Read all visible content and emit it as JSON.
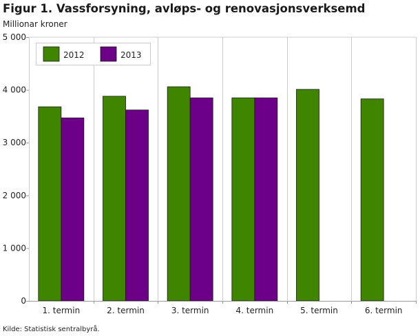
{
  "title": "Figur 1. Vassforsyning, avløps- og renovasjonsverksemd",
  "subtitle": "Millionar kroner",
  "source": "Kilde: Statistisk sentralbyrå.",
  "colors": {
    "2012": "#3f8500",
    "2013": "#6c0086",
    "grid": "#cccccc",
    "axis": "#999999"
  },
  "chart_data": {
    "type": "bar",
    "title": "Figur 1. Vassforsyning, avløps- og renovasjonsverksemd",
    "ylabel": "Millionar kroner",
    "xlabel": "",
    "categories": [
      "1. termin",
      "2. termin",
      "3. termin",
      "4. termin",
      "5. termin",
      "6. termin"
    ],
    "series": [
      {
        "name": "2012",
        "values": [
          3680,
          3880,
          4060,
          3850,
          4010,
          3830
        ]
      },
      {
        "name": "2013",
        "values": [
          3470,
          3620,
          3850,
          3850,
          null,
          null
        ]
      }
    ],
    "ylim": [
      0,
      5000
    ],
    "yticks": [
      0,
      1000,
      2000,
      3000,
      4000,
      5000
    ],
    "ytick_labels": [
      "0",
      "1 000",
      "2 000",
      "3 000",
      "4 000",
      "5 000"
    ],
    "grid": "vertical",
    "legend_position": "top-left"
  }
}
